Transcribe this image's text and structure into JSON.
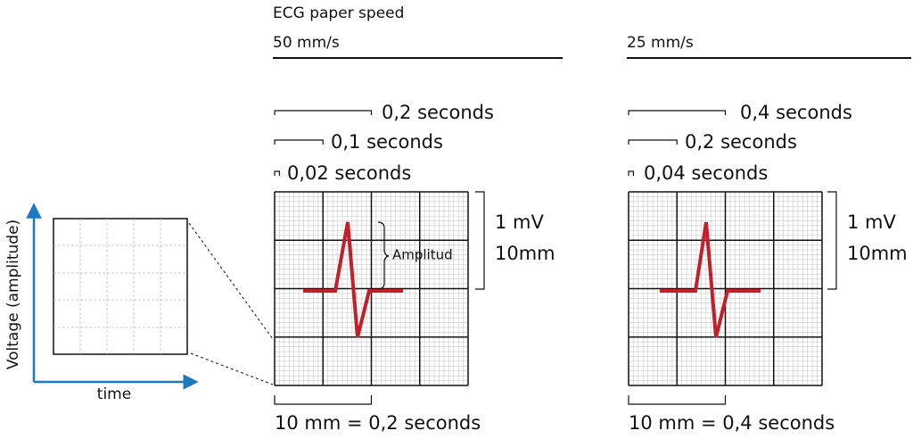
{
  "header": {
    "title": "ECG paper speed"
  },
  "axes": {
    "y_label": "Voltage (amplitude)",
    "x_label": "time"
  },
  "panels": [
    {
      "speed": "50 mm/s",
      "scales": [
        "0,2 seconds",
        "0,1 seconds",
        "0,02 seconds"
      ],
      "amplitude": "Amplitud",
      "voltage": "1 mV",
      "height": "10mm",
      "footer": "10 mm = 0,2 seconds"
    },
    {
      "speed": "25 mm/s",
      "scales": [
        "0,4 seconds",
        "0,2 seconds",
        "0,04 seconds"
      ],
      "voltage": "1 mV",
      "height": "10mm",
      "footer": "10 mm = 0,4 seconds"
    }
  ]
}
